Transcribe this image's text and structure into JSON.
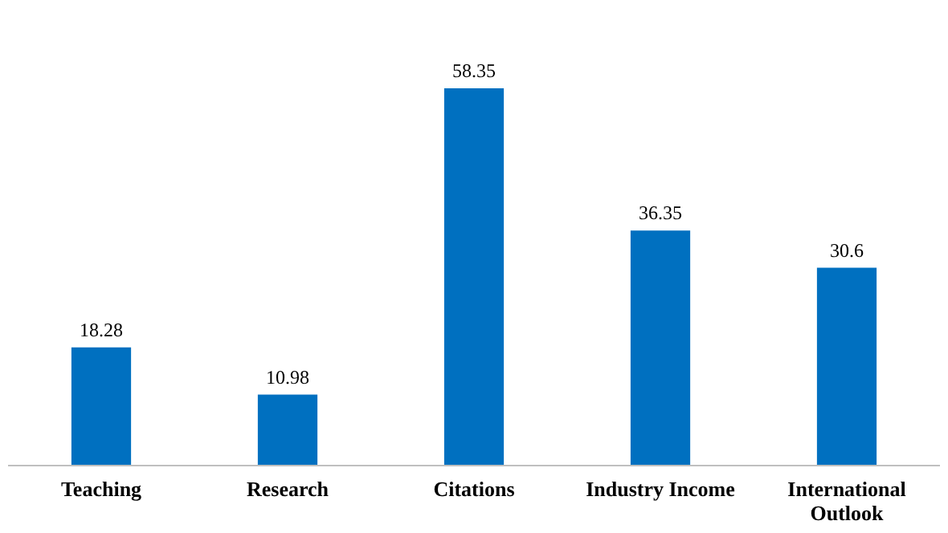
{
  "chart_data": {
    "type": "bar",
    "categories": [
      "Teaching",
      "Research",
      "Citations",
      "Industry Income",
      "International Outlook"
    ],
    "values": [
      18.28,
      10.98,
      58.35,
      36.35,
      30.6
    ],
    "color": "#0070c0",
    "data_labels": true
  }
}
